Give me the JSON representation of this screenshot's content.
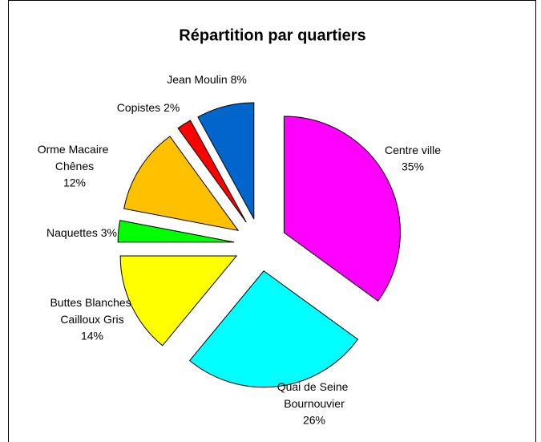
{
  "chart_data": {
    "type": "pie",
    "title": "Répartition par quartiers",
    "categories": [
      "Centre ville",
      "Quai de Seine Bournouvier",
      "Buttes Blanches Cailloux Gris",
      "Naquettes",
      "Orme Macaire Chênes",
      "Copistes",
      "Jean Moulin"
    ],
    "values": [
      35,
      26,
      14,
      3,
      12,
      2,
      8
    ],
    "value_labels": [
      "35%",
      "26%",
      "14%",
      "3%",
      "12%",
      "2%",
      "8%"
    ],
    "colors": [
      "#ff00ff",
      "#00ffff",
      "#ffff00",
      "#00ff00",
      "#ffc000",
      "#ff0000",
      "#0066cc"
    ]
  }
}
